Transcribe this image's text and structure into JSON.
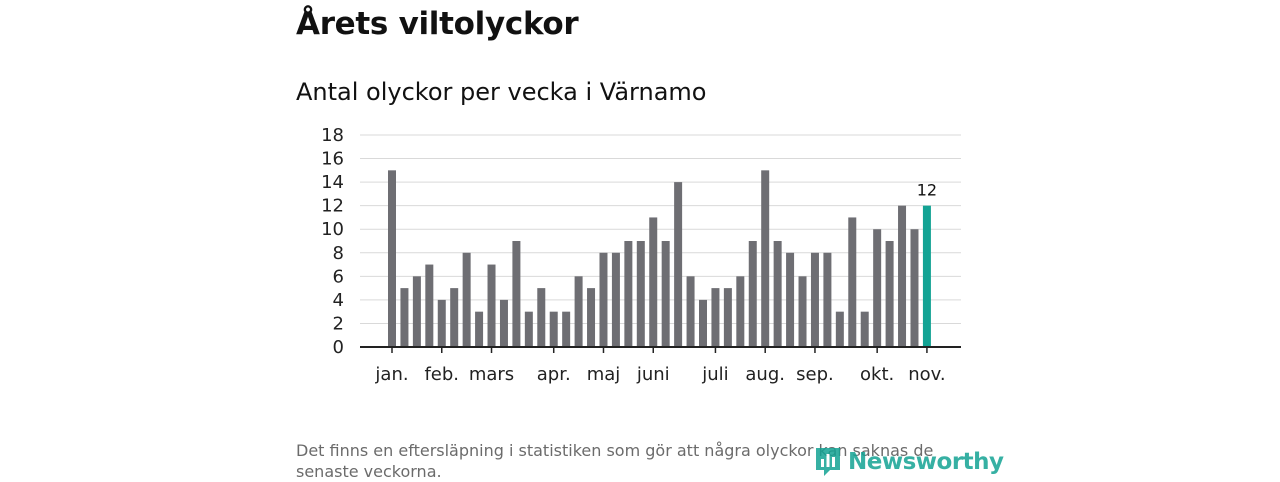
{
  "header": {
    "title": "Årets viltolyckor",
    "subtitle": "Antal olyckor per vecka i Värnamo"
  },
  "footer": {
    "note": "Det finns en eftersläpning i statistiken som gör att några olyckor kan saknas de senaste veckorna.",
    "brand": "Newsworthy",
    "brand_icon": "newsworthy-logo-icon"
  },
  "colors": {
    "bar": "#6e6e73",
    "highlight": "#13a394",
    "grid": "#d9d9d9",
    "axis": "#222222"
  },
  "chart_data": {
    "type": "bar",
    "ylim": [
      0,
      18
    ],
    "yticks": [
      0,
      2,
      4,
      6,
      8,
      10,
      12,
      14,
      16,
      18
    ],
    "grid": true,
    "values": [
      15,
      5,
      6,
      7,
      4,
      5,
      8,
      3,
      7,
      4,
      9,
      3,
      5,
      3,
      3,
      6,
      5,
      8,
      8,
      9,
      9,
      11,
      9,
      14,
      6,
      4,
      5,
      5,
      6,
      9,
      15,
      9,
      8,
      6,
      8,
      8,
      3,
      11,
      3,
      10,
      9,
      12,
      10,
      12
    ],
    "month_labels": [
      {
        "label": "jan.",
        "week_index": 0
      },
      {
        "label": "feb.",
        "week_index": 4
      },
      {
        "label": "mars",
        "week_index": 8
      },
      {
        "label": "apr.",
        "week_index": 13
      },
      {
        "label": "maj",
        "week_index": 17
      },
      {
        "label": "juni",
        "week_index": 21
      },
      {
        "label": "juli",
        "week_index": 26
      },
      {
        "label": "aug.",
        "week_index": 30
      },
      {
        "label": "sep.",
        "week_index": 34
      },
      {
        "label": "okt.",
        "week_index": 39
      },
      {
        "label": "nov.",
        "week_index": 43
      }
    ],
    "highlight_index": 43,
    "highlight_label": "12"
  }
}
